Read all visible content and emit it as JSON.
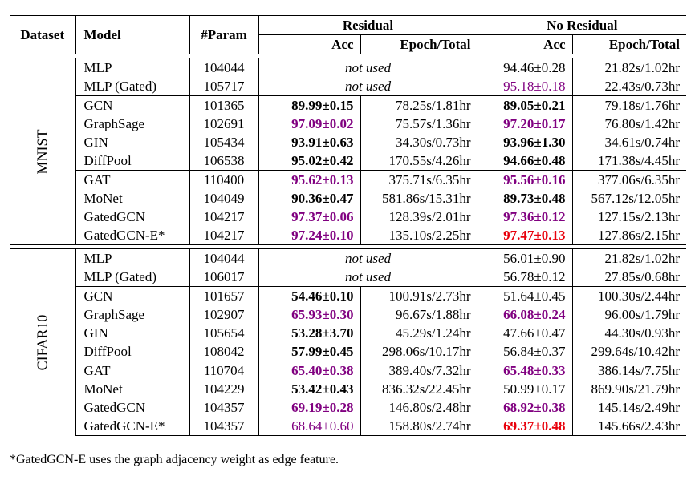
{
  "header": {
    "dataset": "Dataset",
    "model": "Model",
    "param": "#Param",
    "residual": "Residual",
    "no_residual": "No Residual",
    "acc": "Acc",
    "epoch_total": "Epoch/Total"
  },
  "datasets": [
    {
      "name": "MNIST",
      "groups": [
        [
          {
            "model": "MLP",
            "param": "104044",
            "res_acc": "not used",
            "res_acc_style": "notused",
            "res_epoch": "",
            "nores_acc": "94.46±0.28",
            "nores_acc_style": "",
            "nores_epoch": "21.82s/1.02hr"
          },
          {
            "model": "MLP (Gated)",
            "param": "105717",
            "res_acc": "not used",
            "res_acc_style": "notused",
            "res_epoch": "",
            "nores_acc": "95.18±0.18",
            "nores_acc_style": "purple",
            "nores_epoch": "22.43s/0.73hr"
          }
        ],
        [
          {
            "model": "GCN",
            "param": "101365",
            "res_acc": "89.99±0.15",
            "res_acc_style": "bold",
            "res_epoch": "78.25s/1.81hr",
            "nores_acc": "89.05±0.21",
            "nores_acc_style": "bold",
            "nores_epoch": "79.18s/1.76hr"
          },
          {
            "model": "GraphSage",
            "param": "102691",
            "res_acc": "97.09±0.02",
            "res_acc_style": "bold purple",
            "res_epoch": "75.57s/1.36hr",
            "nores_acc": "97.20±0.17",
            "nores_acc_style": "bold purple",
            "nores_epoch": "76.80s/1.42hr"
          },
          {
            "model": "GIN",
            "param": "105434",
            "res_acc": "93.91±0.63",
            "res_acc_style": "bold",
            "res_epoch": "34.30s/0.73hr",
            "nores_acc": "93.96±1.30",
            "nores_acc_style": "bold",
            "nores_epoch": "34.61s/0.74hr"
          },
          {
            "model": "DiffPool",
            "param": "106538",
            "res_acc": "95.02±0.42",
            "res_acc_style": "bold",
            "res_epoch": "170.55s/4.26hr",
            "nores_acc": "94.66±0.48",
            "nores_acc_style": "bold",
            "nores_epoch": "171.38s/4.45hr"
          }
        ],
        [
          {
            "model": "GAT",
            "param": "110400",
            "res_acc": "95.62±0.13",
            "res_acc_style": "bold purple",
            "res_epoch": "375.71s/6.35hr",
            "nores_acc": "95.56±0.16",
            "nores_acc_style": "bold purple",
            "nores_epoch": "377.06s/6.35hr"
          },
          {
            "model": "MoNet",
            "param": "104049",
            "res_acc": "90.36±0.47",
            "res_acc_style": "bold",
            "res_epoch": "581.86s/15.31hr",
            "nores_acc": "89.73±0.48",
            "nores_acc_style": "bold",
            "nores_epoch": "567.12s/12.05hr"
          },
          {
            "model": "GatedGCN",
            "param": "104217",
            "res_acc": "97.37±0.06",
            "res_acc_style": "bold purple",
            "res_epoch": "128.39s/2.01hr",
            "nores_acc": "97.36±0.12",
            "nores_acc_style": "bold purple",
            "nores_epoch": "127.15s/2.13hr"
          },
          {
            "model": "GatedGCN-E*",
            "param": "104217",
            "res_acc": "97.24±0.10",
            "res_acc_style": "bold purple",
            "res_epoch": "135.10s/2.25hr",
            "nores_acc": "97.47±0.13",
            "nores_acc_style": "bold red",
            "nores_epoch": "127.86s/2.15hr"
          }
        ]
      ]
    },
    {
      "name": "CIFAR10",
      "groups": [
        [
          {
            "model": "MLP",
            "param": "104044",
            "res_acc": "not used",
            "res_acc_style": "notused",
            "res_epoch": "",
            "nores_acc": "56.01±0.90",
            "nores_acc_style": "",
            "nores_epoch": "21.82s/1.02hr"
          },
          {
            "model": "MLP (Gated)",
            "param": "106017",
            "res_acc": "not used",
            "res_acc_style": "notused",
            "res_epoch": "",
            "nores_acc": "56.78±0.12",
            "nores_acc_style": "",
            "nores_epoch": "27.85s/0.68hr"
          }
        ],
        [
          {
            "model": "GCN",
            "param": "101657",
            "res_acc": "54.46±0.10",
            "res_acc_style": "bold",
            "res_epoch": "100.91s/2.73hr",
            "nores_acc": "51.64±0.45",
            "nores_acc_style": "",
            "nores_epoch": "100.30s/2.44hr"
          },
          {
            "model": "GraphSage",
            "param": "102907",
            "res_acc": "65.93±0.30",
            "res_acc_style": "bold purple",
            "res_epoch": "96.67s/1.88hr",
            "nores_acc": "66.08±0.24",
            "nores_acc_style": "bold purple",
            "nores_epoch": "96.00s/1.79hr"
          },
          {
            "model": "GIN",
            "param": "105654",
            "res_acc": "53.28±3.70",
            "res_acc_style": "bold",
            "res_epoch": "45.29s/1.24hr",
            "nores_acc": "47.66±0.47",
            "nores_acc_style": "",
            "nores_epoch": "44.30s/0.93hr"
          },
          {
            "model": "DiffPool",
            "param": "108042",
            "res_acc": "57.99±0.45",
            "res_acc_style": "bold",
            "res_epoch": "298.06s/10.17hr",
            "nores_acc": "56.84±0.37",
            "nores_acc_style": "",
            "nores_epoch": "299.64s/10.42hr"
          }
        ],
        [
          {
            "model": "GAT",
            "param": "110704",
            "res_acc": "65.40±0.38",
            "res_acc_style": "bold purple",
            "res_epoch": "389.40s/7.32hr",
            "nores_acc": "65.48±0.33",
            "nores_acc_style": "bold purple",
            "nores_epoch": "386.14s/7.75hr"
          },
          {
            "model": "MoNet",
            "param": "104229",
            "res_acc": "53.42±0.43",
            "res_acc_style": "bold",
            "res_epoch": "836.32s/22.45hr",
            "nores_acc": "50.99±0.17",
            "nores_acc_style": "",
            "nores_epoch": "869.90s/21.79hr"
          },
          {
            "model": "GatedGCN",
            "param": "104357",
            "res_acc": "69.19±0.28",
            "res_acc_style": "bold purple",
            "res_epoch": "146.80s/2.48hr",
            "nores_acc": "68.92±0.38",
            "nores_acc_style": "bold purple",
            "nores_epoch": "145.14s/2.49hr"
          },
          {
            "model": "GatedGCN-E*",
            "param": "104357",
            "res_acc": "68.64±0.60",
            "res_acc_style": "purple",
            "res_epoch": "158.80s/2.74hr",
            "nores_acc": "69.37±0.48",
            "nores_acc_style": "bold red",
            "nores_epoch": "145.66s/2.43hr"
          }
        ]
      ]
    }
  ],
  "footnote": "*GatedGCN-E uses the graph adjacency weight as edge feature.",
  "colors": {
    "purple": "#800080",
    "red": "#e8000b"
  }
}
